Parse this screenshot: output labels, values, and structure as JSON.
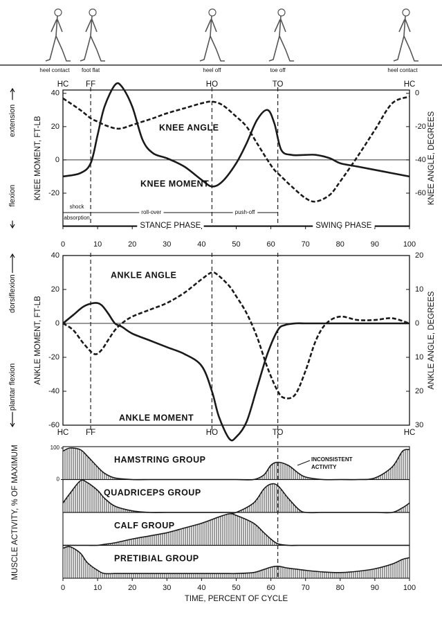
{
  "chart_data": [
    {
      "type": "line",
      "ylabel": "KNEE MOMENT, FT-LB",
      "y2label": "KNEE ANGLE, DEGREES",
      "side_labels": {
        "positive": "extension",
        "negative": "flexion"
      },
      "xlim": [
        0,
        100
      ],
      "xticks": [
        0,
        10,
        20,
        30,
        40,
        50,
        60,
        70,
        80,
        90,
        100
      ],
      "ylim": [
        -40,
        42
      ],
      "yticks": [
        -20,
        0,
        20,
        40
      ],
      "y2lim": [
        -80,
        2
      ],
      "y2ticks": [
        -60,
        -40,
        -20,
        0
      ],
      "x": [
        0,
        5,
        8,
        10,
        12,
        15,
        17,
        20,
        23,
        26,
        30,
        35,
        40,
        43,
        46,
        50,
        53,
        56,
        59,
        61,
        63,
        66,
        70,
        73,
        77,
        80,
        85,
        90,
        95,
        100
      ],
      "series": [
        {
          "name": "KNEE MOMENT",
          "color": "#1a1a1a",
          "dashed": false,
          "values": [
            -10,
            -8,
            -2,
            15,
            32,
            45,
            44,
            32,
            12,
            4,
            1,
            -4,
            -12,
            -16,
            -13,
            -2,
            10,
            24,
            30,
            22,
            6,
            3,
            3,
            3,
            1,
            -2,
            -4,
            -6,
            -8,
            -10
          ]
        },
        {
          "name": "KNEE ANGLE",
          "color": "#1a1a1a",
          "dashed": true,
          "axis": "y2",
          "values": [
            -3,
            -10,
            -15,
            -17,
            -19,
            -21,
            -21,
            -19,
            -17,
            -15,
            -12,
            -9,
            -6,
            -5,
            -7,
            -14,
            -20,
            -30,
            -40,
            -46,
            -50,
            -56,
            -63,
            -65,
            -61,
            -53,
            -38,
            -22,
            -6,
            -2
          ]
        }
      ],
      "events": [
        {
          "label": "HC",
          "name": "heel contact",
          "x": 0
        },
        {
          "label": "FF",
          "name": "foot flat",
          "x": 8
        },
        {
          "label": "HO",
          "name": "heel off",
          "x": 43
        },
        {
          "label": "TO",
          "name": "toe off",
          "x": 62
        },
        {
          "label": "HC",
          "name": "heel contact",
          "x": 100
        }
      ],
      "phases": [
        {
          "lines": [
            "shock",
            "absorption"
          ],
          "from": 0,
          "to": 8
        },
        {
          "lines": [
            "roll-over"
          ],
          "from": 8,
          "to": 43
        },
        {
          "lines": [
            "push-off"
          ],
          "from": 43,
          "to": 62
        }
      ],
      "periods": [
        {
          "label": "STANCE PHASE",
          "from": 0,
          "to": 62
        },
        {
          "label": "SWING PHASE",
          "from": 62,
          "to": 100
        }
      ]
    },
    {
      "type": "line",
      "ylabel": "ANKLE MOMENT, FT-LB",
      "y2label": "ANKLE ANGLE, DEGREES",
      "side_labels": {
        "positive": "dorsiflexion",
        "negative": "plantar flexion"
      },
      "xlim": [
        0,
        100
      ],
      "ylim": [
        -60,
        40
      ],
      "yticks": [
        -60,
        -40,
        -20,
        0,
        20,
        40
      ],
      "y2lim": [
        -30,
        20
      ],
      "y2ticks": [
        {
          "value": -30,
          "label": "30"
        },
        {
          "value": -20,
          "label": "20"
        },
        {
          "value": -10,
          "label": "10"
        },
        0,
        10,
        20
      ],
      "x": [
        0,
        3,
        6,
        9,
        11,
        13,
        15,
        17,
        20,
        25,
        30,
        35,
        40,
        43,
        45,
        48,
        50,
        53,
        56,
        59,
        62,
        64,
        67,
        70,
        73,
        76,
        80,
        85,
        90,
        95,
        100
      ],
      "series": [
        {
          "name": "ANKLE MOMENT",
          "color": "#1a1a1a",
          "dashed": false,
          "values": [
            0,
            5,
            10,
            12,
            11,
            6,
            0,
            -2,
            -6,
            -10,
            -14,
            -18,
            -25,
            -40,
            -55,
            -68,
            -67,
            -58,
            -38,
            -18,
            -4,
            -1,
            0,
            0,
            0,
            0,
            0,
            0,
            0,
            0,
            0
          ]
        },
        {
          "name": "ANKLE ANGLE",
          "color": "#1a1a1a",
          "dashed": true,
          "axis": "y2",
          "values": [
            0,
            -2,
            -6,
            -9,
            -8,
            -5,
            -2,
            0,
            2,
            4,
            6,
            9,
            13,
            15,
            14,
            11,
            8,
            3,
            -4,
            -13,
            -20,
            -22,
            -21,
            -14,
            -5,
            0,
            2,
            1,
            1,
            1.5,
            0
          ]
        }
      ],
      "events": [
        {
          "label": "HC",
          "x": 0
        },
        {
          "label": "FF",
          "x": 8
        },
        {
          "label": "HO",
          "x": 43
        },
        {
          "label": "TO",
          "x": 62
        },
        {
          "label": "HC",
          "x": 100
        }
      ]
    },
    {
      "type": "area",
      "ylabel": "MUSCLE ACTIVITY, % OF MAXIMUM",
      "xlabel": "TIME, PERCENT OF CYCLE",
      "xlim": [
        0,
        100
      ],
      "xticks": [
        0,
        10,
        20,
        30,
        40,
        50,
        60,
        70,
        80,
        90,
        100
      ],
      "ylim": [
        0,
        100
      ],
      "yticks": [
        0,
        100
      ],
      "event_lines": [
        62
      ],
      "annotation": [
        "INCONSISTENT",
        "ACTIVITY"
      ],
      "x": [
        0,
        2,
        5,
        7,
        10,
        12,
        15,
        20,
        25,
        30,
        35,
        40,
        45,
        48,
        50,
        55,
        58,
        60,
        62,
        65,
        68,
        70,
        75,
        80,
        85,
        90,
        95,
        98,
        100
      ],
      "series": [
        {
          "name": "HAMSTRING GROUP",
          "color": "#1a1a1a",
          "values": [
            90,
            100,
            95,
            75,
            40,
            20,
            5,
            0,
            0,
            0,
            0,
            0,
            0,
            0,
            0,
            0,
            15,
            45,
            55,
            45,
            20,
            8,
            0,
            0,
            0,
            5,
            40,
            90,
            95
          ]
        },
        {
          "name": "QUADRICEPS GROUP",
          "color": "#1a1a1a",
          "values": [
            30,
            60,
            100,
            95,
            70,
            45,
            20,
            5,
            0,
            0,
            0,
            0,
            0,
            0,
            0,
            30,
            75,
            90,
            85,
            45,
            10,
            0,
            0,
            0,
            0,
            0,
            0,
            15,
            30
          ]
        },
        {
          "name": "CALF GROUP",
          "color": "#1a1a1a",
          "values": [
            0,
            0,
            0,
            0,
            0,
            3,
            8,
            20,
            30,
            40,
            55,
            70,
            90,
            100,
            95,
            70,
            40,
            20,
            5,
            0,
            0,
            0,
            0,
            0,
            0,
            0,
            0,
            0,
            0
          ]
        },
        {
          "name": "PRETIBIAL GROUP",
          "color": "#1a1a1a",
          "values": [
            95,
            100,
            80,
            50,
            25,
            15,
            15,
            15,
            15,
            15,
            15,
            15,
            15,
            15,
            15,
            18,
            28,
            35,
            38,
            32,
            28,
            25,
            20,
            18,
            22,
            30,
            45,
            60,
            65
          ]
        }
      ]
    }
  ]
}
